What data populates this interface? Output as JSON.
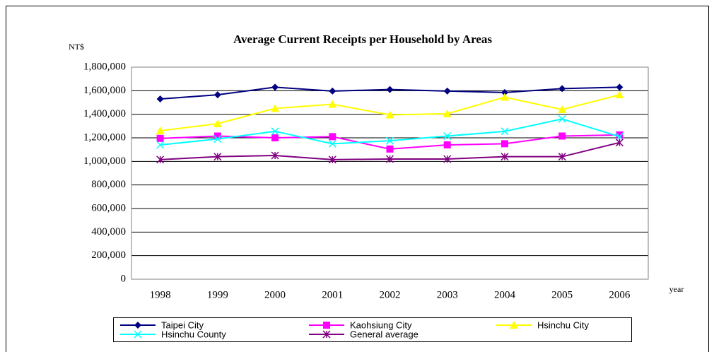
{
  "chart_data": {
    "type": "line",
    "title": "Average Current Receipts per Household by Areas",
    "y_label": "NT$",
    "x_label": "year",
    "categories": [
      "1998",
      "1999",
      "2000",
      "2001",
      "2002",
      "2003",
      "2004",
      "2005",
      "2006"
    ],
    "series": [
      {
        "name": "Taipei City",
        "color": "#000080",
        "marker": "diamond",
        "values": [
          1530000,
          1565000,
          1630000,
          1597000,
          1610000,
          1597000,
          1585000,
          1618000,
          1630000
        ]
      },
      {
        "name": "Kaohsiung City",
        "color": "#ff00ff",
        "marker": "square",
        "values": [
          1195000,
          1215000,
          1200000,
          1210000,
          1105000,
          1140000,
          1150000,
          1215000,
          1225000
        ]
      },
      {
        "name": "Hsinchu City",
        "color": "#ffff00",
        "marker": "triangle",
        "values": [
          1260000,
          1320000,
          1450000,
          1485000,
          1395000,
          1405000,
          1545000,
          1440000,
          1565000
        ]
      },
      {
        "name": "Hsinchu County",
        "color": "#00ffff",
        "marker": "x",
        "values": [
          1140000,
          1190000,
          1255000,
          1150000,
          1175000,
          1215000,
          1255000,
          1360000,
          1210000
        ]
      },
      {
        "name": "General average",
        "color": "#800080",
        "marker": "star",
        "values": [
          1015000,
          1040000,
          1050000,
          1015000,
          1020000,
          1020000,
          1040000,
          1040000,
          1160000
        ]
      }
    ],
    "ylim": [
      0,
      1800000
    ],
    "yticks": [
      0,
      {
        "value": 200000,
        "label": "200,000"
      },
      {
        "value": 400000,
        "label": "400,000"
      },
      {
        "value": 600000,
        "label": "600,000"
      },
      {
        "value": 800000,
        "label": "800,000"
      },
      {
        "value": 1000000,
        "label": "1,000,000"
      },
      {
        "value": 1200000,
        "label": "1,200,000"
      },
      {
        "value": 1400000,
        "label": "1,400,000"
      },
      {
        "value": 1600000,
        "label": "1,600,000"
      },
      {
        "value": 1800000,
        "label": "1,800,000"
      }
    ],
    "grid": true
  }
}
